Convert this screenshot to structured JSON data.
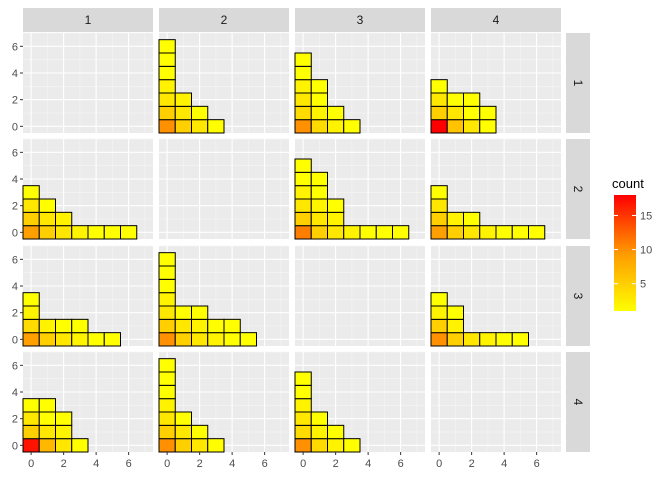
{
  "chart_data": {
    "type": "heatmap",
    "facet_cols": [
      "1",
      "2",
      "3",
      "4"
    ],
    "facet_rows": [
      "1",
      "2",
      "3",
      "4"
    ],
    "xlim": [
      -0.5,
      7.5
    ],
    "ylim": [
      -0.5,
      7.0
    ],
    "x_ticks": [
      0,
      2,
      4,
      6
    ],
    "y_ticks": [
      0,
      2,
      4,
      6
    ],
    "grid": true,
    "legend": {
      "title": "count",
      "placement": "right",
      "ticks": [
        5,
        10,
        15
      ],
      "range": [
        1,
        18
      ],
      "color_low": "#ffff00",
      "color_high": "#ff0000"
    },
    "panels": [
      {
        "row": "1",
        "col": "1",
        "cells": []
      },
      {
        "row": "1",
        "col": "2",
        "cells": [
          [
            0,
            0,
            10
          ],
          [
            0,
            1,
            5
          ],
          [
            0,
            2,
            3
          ],
          [
            0,
            3,
            2
          ],
          [
            0,
            4,
            1
          ],
          [
            0,
            5,
            1
          ],
          [
            0,
            6,
            1
          ],
          [
            1,
            0,
            5
          ],
          [
            1,
            1,
            3
          ],
          [
            1,
            2,
            2
          ],
          [
            2,
            0,
            3
          ],
          [
            2,
            1,
            1
          ],
          [
            3,
            0,
            1
          ]
        ]
      },
      {
        "row": "1",
        "col": "3",
        "cells": [
          [
            0,
            0,
            10
          ],
          [
            0,
            1,
            4
          ],
          [
            0,
            2,
            3
          ],
          [
            0,
            3,
            2
          ],
          [
            0,
            4,
            1
          ],
          [
            0,
            5,
            1
          ],
          [
            1,
            0,
            4
          ],
          [
            1,
            1,
            2
          ],
          [
            1,
            2,
            1
          ],
          [
            1,
            3,
            1
          ],
          [
            2,
            0,
            2
          ],
          [
            2,
            1,
            1
          ],
          [
            3,
            0,
            1
          ]
        ]
      },
      {
        "row": "1",
        "col": "4",
        "cells": [
          [
            0,
            0,
            18
          ],
          [
            0,
            1,
            5
          ],
          [
            0,
            2,
            3
          ],
          [
            0,
            3,
            1
          ],
          [
            1,
            0,
            6
          ],
          [
            1,
            1,
            3
          ],
          [
            1,
            2,
            1
          ],
          [
            2,
            0,
            3
          ],
          [
            2,
            1,
            1
          ],
          [
            2,
            2,
            1
          ],
          [
            3,
            0,
            1
          ],
          [
            3,
            1,
            1
          ]
        ]
      },
      {
        "row": "2",
        "col": "1",
        "cells": [
          [
            0,
            0,
            9
          ],
          [
            0,
            1,
            5
          ],
          [
            0,
            2,
            3
          ],
          [
            0,
            3,
            1
          ],
          [
            1,
            0,
            5
          ],
          [
            1,
            1,
            3
          ],
          [
            1,
            2,
            1
          ],
          [
            2,
            0,
            3
          ],
          [
            2,
            1,
            2
          ],
          [
            3,
            0,
            2
          ],
          [
            4,
            0,
            1
          ],
          [
            5,
            0,
            1
          ],
          [
            6,
            0,
            1
          ]
        ]
      },
      {
        "row": "2",
        "col": "2",
        "cells": []
      },
      {
        "row": "2",
        "col": "3",
        "cells": [
          [
            0,
            0,
            11
          ],
          [
            0,
            1,
            5
          ],
          [
            0,
            2,
            3
          ],
          [
            0,
            3,
            2
          ],
          [
            0,
            4,
            1
          ],
          [
            0,
            5,
            1
          ],
          [
            1,
            0,
            5
          ],
          [
            1,
            1,
            3
          ],
          [
            1,
            2,
            2
          ],
          [
            1,
            3,
            1
          ],
          [
            1,
            4,
            1
          ],
          [
            2,
            0,
            3
          ],
          [
            2,
            1,
            2
          ],
          [
            2,
            2,
            1
          ],
          [
            3,
            0,
            2
          ],
          [
            4,
            0,
            1
          ],
          [
            5,
            0,
            1
          ],
          [
            6,
            0,
            1
          ]
        ]
      },
      {
        "row": "2",
        "col": "4",
        "cells": [
          [
            0,
            0,
            9
          ],
          [
            0,
            1,
            5
          ],
          [
            0,
            2,
            3
          ],
          [
            0,
            3,
            1
          ],
          [
            1,
            0,
            5
          ],
          [
            1,
            1,
            2
          ],
          [
            2,
            0,
            3
          ],
          [
            2,
            1,
            1
          ],
          [
            3,
            0,
            2
          ],
          [
            4,
            0,
            1
          ],
          [
            5,
            0,
            1
          ],
          [
            6,
            0,
            1
          ]
        ]
      },
      {
        "row": "3",
        "col": "1",
        "cells": [
          [
            0,
            0,
            9
          ],
          [
            0,
            1,
            4
          ],
          [
            0,
            2,
            2
          ],
          [
            0,
            3,
            1
          ],
          [
            1,
            0,
            5
          ],
          [
            1,
            1,
            2
          ],
          [
            2,
            0,
            3
          ],
          [
            2,
            1,
            1
          ],
          [
            3,
            0,
            2
          ],
          [
            3,
            1,
            1
          ],
          [
            4,
            0,
            1
          ],
          [
            5,
            0,
            1
          ]
        ]
      },
      {
        "row": "3",
        "col": "2",
        "cells": [
          [
            0,
            0,
            10
          ],
          [
            0,
            1,
            5
          ],
          [
            0,
            2,
            3
          ],
          [
            0,
            3,
            2
          ],
          [
            0,
            4,
            1
          ],
          [
            0,
            5,
            1
          ],
          [
            0,
            6,
            1
          ],
          [
            1,
            0,
            5
          ],
          [
            1,
            1,
            3
          ],
          [
            1,
            2,
            1
          ],
          [
            2,
            0,
            3
          ],
          [
            2,
            1,
            2
          ],
          [
            2,
            2,
            1
          ],
          [
            3,
            0,
            2
          ],
          [
            3,
            1,
            1
          ],
          [
            4,
            0,
            1
          ],
          [
            4,
            1,
            1
          ],
          [
            5,
            0,
            1
          ]
        ]
      },
      {
        "row": "3",
        "col": "3",
        "cells": []
      },
      {
        "row": "3",
        "col": "4",
        "cells": [
          [
            0,
            0,
            10
          ],
          [
            0,
            1,
            5
          ],
          [
            0,
            2,
            2
          ],
          [
            0,
            3,
            1
          ],
          [
            1,
            0,
            5
          ],
          [
            1,
            1,
            2
          ],
          [
            1,
            2,
            1
          ],
          [
            2,
            0,
            3
          ],
          [
            3,
            0,
            2
          ],
          [
            4,
            0,
            1
          ],
          [
            5,
            0,
            1
          ]
        ]
      },
      {
        "row": "4",
        "col": "1",
        "cells": [
          [
            0,
            0,
            17
          ],
          [
            0,
            1,
            5
          ],
          [
            0,
            2,
            3
          ],
          [
            0,
            3,
            1
          ],
          [
            1,
            0,
            7
          ],
          [
            1,
            1,
            3
          ],
          [
            1,
            2,
            1
          ],
          [
            1,
            3,
            1
          ],
          [
            2,
            0,
            3
          ],
          [
            2,
            1,
            2
          ],
          [
            2,
            2,
            1
          ],
          [
            3,
            0,
            1
          ]
        ]
      },
      {
        "row": "4",
        "col": "2",
        "cells": [
          [
            0,
            0,
            10
          ],
          [
            0,
            1,
            5
          ],
          [
            0,
            2,
            3
          ],
          [
            0,
            3,
            2
          ],
          [
            0,
            4,
            1
          ],
          [
            0,
            5,
            1
          ],
          [
            0,
            6,
            1
          ],
          [
            1,
            0,
            5
          ],
          [
            1,
            1,
            3
          ],
          [
            1,
            2,
            1
          ],
          [
            2,
            0,
            3
          ],
          [
            2,
            1,
            1
          ],
          [
            3,
            0,
            1
          ]
        ]
      },
      {
        "row": "4",
        "col": "3",
        "cells": [
          [
            0,
            0,
            10
          ],
          [
            0,
            1,
            4
          ],
          [
            0,
            2,
            3
          ],
          [
            0,
            3,
            2
          ],
          [
            0,
            4,
            1
          ],
          [
            0,
            5,
            1
          ],
          [
            1,
            0,
            4
          ],
          [
            1,
            1,
            2
          ],
          [
            1,
            2,
            1
          ],
          [
            2,
            0,
            2
          ],
          [
            2,
            1,
            1
          ],
          [
            3,
            0,
            1
          ]
        ]
      },
      {
        "row": "4",
        "col": "4",
        "cells": []
      }
    ]
  }
}
